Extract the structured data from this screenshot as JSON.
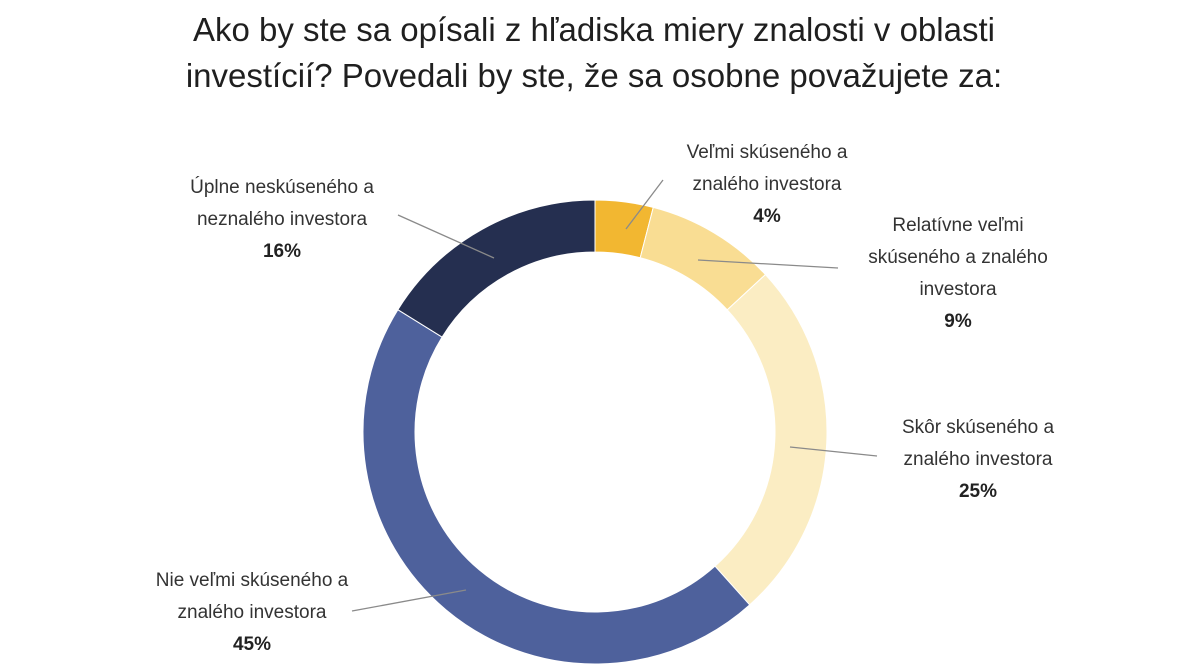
{
  "chart_data": {
    "type": "pie",
    "title_lines": [
      "Ako by ste sa opísali z hľadiska miery znalosti v oblasti",
      "investícií? Povedali by ste, že sa osobne považujete za:"
    ],
    "slices": [
      {
        "label_lines": [
          "Veľmi skúseného a",
          "znalého investora"
        ],
        "value": 4,
        "value_label": "4%",
        "color": "#f2b731"
      },
      {
        "label_lines": [
          "Relatívne veľmi",
          "skúseného a znalého",
          "investora"
        ],
        "value": 9,
        "value_label": "9%",
        "color": "#f9dd93"
      },
      {
        "label_lines": [
          "Skôr skúseného a",
          "znalého investora"
        ],
        "value": 25,
        "value_label": "25%",
        "color": "#fbedc3"
      },
      {
        "label_lines": [
          "Nie veľmi skúseného a",
          "znalého investora"
        ],
        "value": 45,
        "value_label": "45%",
        "color": "#4e619c"
      },
      {
        "label_lines": [
          "Úplne neskúseného a",
          "neznalého investora"
        ],
        "value": 16,
        "value_label": "16%",
        "color": "#252f50"
      }
    ],
    "donut": true,
    "start": "top",
    "direction": "clockwise",
    "legend": "none"
  }
}
